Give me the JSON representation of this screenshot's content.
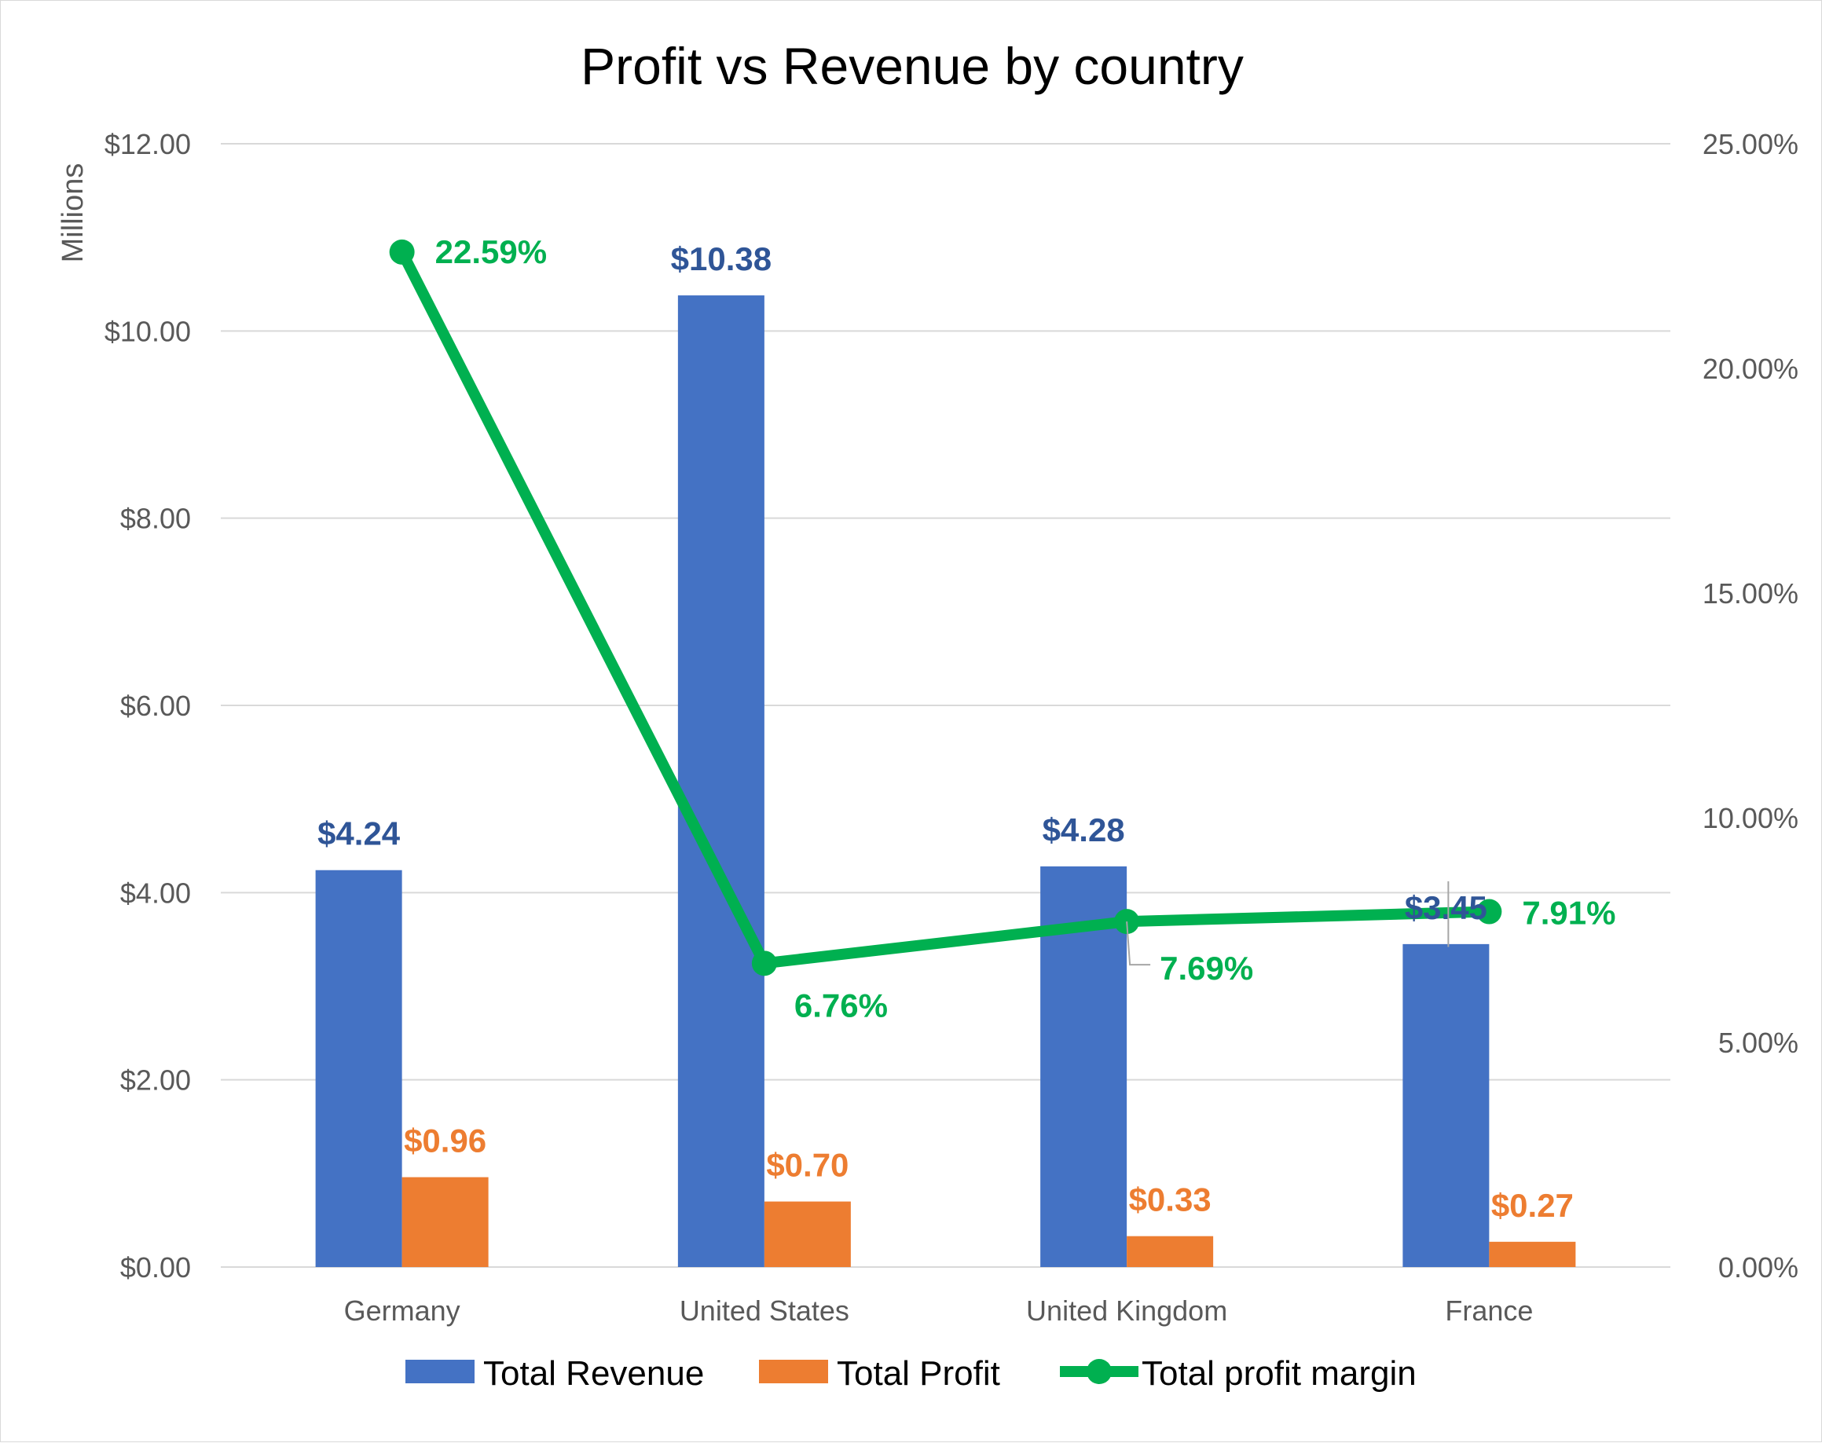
{
  "chart_data": {
    "type": "bar",
    "title": "Profit vs Revenue by country",
    "categories": [
      "Germany",
      "United States",
      "United Kingdom",
      "France"
    ],
    "y_unit_label": "Millions",
    "ylim": [
      0,
      12
    ],
    "y_ticks": [
      0,
      2,
      4,
      6,
      8,
      10,
      12
    ],
    "y_tick_labels": [
      "$0.00",
      "$2.00",
      "$4.00",
      "$6.00",
      "$8.00",
      "$10.00",
      "$12.00"
    ],
    "y2lim": [
      0,
      25
    ],
    "y2_ticks": [
      0,
      5,
      10,
      15,
      20,
      25
    ],
    "y2_tick_labels": [
      "0.00%",
      "5.00%",
      "10.00%",
      "15.00%",
      "20.00%",
      "25.00%"
    ],
    "grid": true,
    "legend_position": "bottom",
    "series": [
      {
        "name": "Total Revenue",
        "type": "bar",
        "axis": "left",
        "color": "#4472C4",
        "label_color": "#2F5597",
        "values": [
          4.24,
          10.38,
          4.28,
          3.45
        ],
        "labels": [
          "$4.24",
          "$10.38",
          "$4.28",
          "$3.45"
        ]
      },
      {
        "name": "Total Profit",
        "type": "bar",
        "axis": "left",
        "color": "#ED7D31",
        "label_color": "#ED7D31",
        "values": [
          0.96,
          0.7,
          0.33,
          0.27
        ],
        "labels": [
          "$0.96",
          "$0.70",
          "$0.33",
          "$0.27"
        ]
      },
      {
        "name": "Total profit margin",
        "type": "line",
        "axis": "right",
        "color": "#00B050",
        "label_color": "#00B050",
        "values": [
          22.59,
          6.76,
          7.69,
          7.91
        ],
        "labels": [
          "22.59%",
          "6.76%",
          "7.69%",
          "7.91%"
        ]
      }
    ]
  }
}
